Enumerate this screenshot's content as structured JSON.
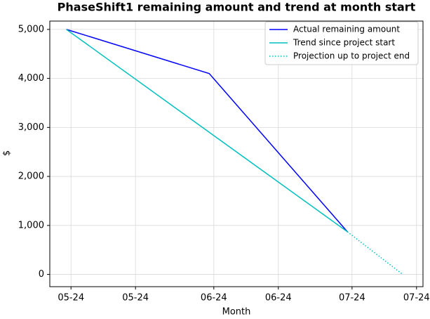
{
  "chart_data": {
    "type": "line",
    "title": "PhaseShift1 remaining amount and trend at month start",
    "xlabel": "Month",
    "ylabel": "$",
    "xlim": [
      -4.6,
      76.4
    ],
    "ylim": [
      -250,
      5170
    ],
    "xticks": [
      {
        "value": 0,
        "label": "05-24"
      },
      {
        "value": 14,
        "label": "05-24"
      },
      {
        "value": 31,
        "label": "06-24"
      },
      {
        "value": 45,
        "label": "06-24"
      },
      {
        "value": 61,
        "label": "07-24"
      },
      {
        "value": 75,
        "label": "07-24"
      }
    ],
    "yticks": [
      0,
      {
        "value": 1000,
        "label": "1,000"
      },
      {
        "value": 2000,
        "label": "2,000"
      },
      {
        "value": 3000,
        "label": "3,000"
      },
      {
        "value": 4000,
        "label": "4,000"
      },
      {
        "value": 5000,
        "label": "5,000"
      }
    ],
    "grid": true,
    "legend": "upper right",
    "series": [
      {
        "name": "Actual remaining amount",
        "color": "#0000ff",
        "style": "solid",
        "x": [
          -1,
          30,
          60
        ],
        "values": [
          5000,
          4100,
          870
        ]
      },
      {
        "name": "Trend since project start",
        "color": "#00bfbf",
        "style": "solid",
        "x": [
          -1,
          60
        ],
        "values": [
          5000,
          870
        ]
      },
      {
        "name": "Projection up to project end",
        "color": "#00bfbf",
        "style": "dotted",
        "x": [
          60,
          72
        ],
        "values": [
          870,
          0
        ]
      }
    ]
  }
}
